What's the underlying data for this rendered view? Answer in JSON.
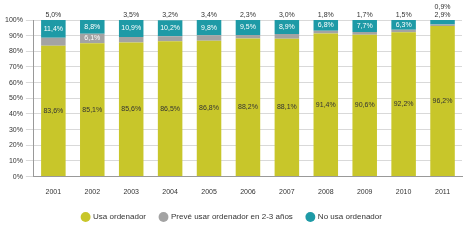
{
  "chart_data": {
    "type": "bar",
    "stacked": true,
    "grid": true,
    "legend": "bottom",
    "data_labels": true,
    "categories": [
      "2001",
      "2002",
      "2003",
      "2004",
      "2005",
      "2006",
      "2007",
      "2008",
      "2009",
      "2010",
      "2011"
    ],
    "ylim": [
      0,
      100
    ],
    "yticks": [
      {
        "value": 0,
        "label": "0%"
      },
      {
        "value": 10,
        "label": "10%"
      },
      {
        "value": 20,
        "label": "20%"
      },
      {
        "value": 30,
        "label": "30%"
      },
      {
        "value": 40,
        "label": "40%"
      },
      {
        "value": 50,
        "label": "50%"
      },
      {
        "value": 60,
        "label": "60%"
      },
      {
        "value": 70,
        "label": "70%"
      },
      {
        "value": 80,
        "label": "80%"
      },
      {
        "value": 90,
        "label": "90%"
      },
      {
        "value": 100,
        "label": "100%"
      }
    ],
    "series": [
      {
        "name": "Usa ordenador",
        "color": "#c8c62a",
        "values": [
          83.6,
          85.1,
          85.6,
          86.5,
          86.8,
          88.2,
          88.1,
          91.4,
          90.6,
          92.2,
          96.2
        ],
        "value_labels": [
          "83,6%",
          "85,1%",
          "85,6%",
          "86,5%",
          "86,8%",
          "88,2%",
          "88,1%",
          "91,4%",
          "90,6%",
          "92,2%",
          "96,2%"
        ]
      },
      {
        "name": "Prevé usar ordenador en 2-3 años",
        "color": "#a3a3a3",
        "values": [
          5.0,
          6.1,
          3.5,
          3.2,
          3.4,
          2.3,
          3.0,
          1.8,
          1.7,
          1.5,
          0.9
        ],
        "value_labels": [
          "5,0%",
          "6,1%",
          "3,5%",
          "3,2%",
          "3,4%",
          "2,3%",
          "3,0%",
          "1,8%",
          "1,7%",
          "1,5%",
          "0,9%"
        ]
      },
      {
        "name": "No usa ordenador",
        "color": "#1e9aa6",
        "values": [
          11.4,
          8.8,
          10.9,
          10.2,
          9.8,
          9.5,
          8.9,
          6.8,
          7.7,
          6.3,
          2.9
        ],
        "value_labels": [
          "11,4%",
          "8,8%",
          "10,9%",
          "10,2%",
          "9,8%",
          "9,5%",
          "8,9%",
          "6,8%",
          "7,7%",
          "6,3%",
          "2,9%"
        ]
      }
    ]
  }
}
